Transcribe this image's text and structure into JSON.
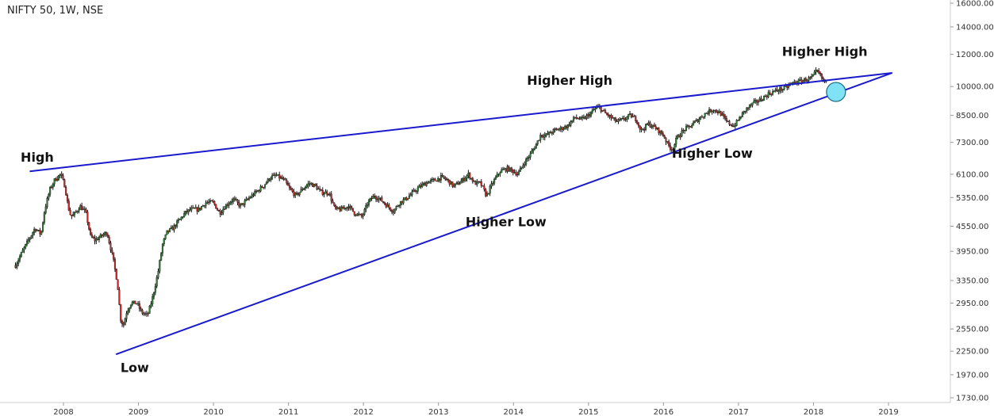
{
  "chart_data": {
    "type": "candlestick",
    "title": "NIFTY 50, 1W, NSE",
    "y_scale": "log",
    "yticks": [
      1730,
      1970,
      2250,
      2550,
      2950,
      3350,
      3950,
      4550,
      5350,
      6100,
      7300,
      8500,
      10000,
      12000,
      14000,
      16000
    ],
    "xticks": [
      "2008",
      "2009",
      "2010",
      "2011",
      "2012",
      "2013",
      "2014",
      "2015",
      "2016",
      "2017",
      "2018",
      "2019"
    ],
    "x_range": [
      2007.35,
      2019.3
    ],
    "ylim": [
      1690,
      16800
    ],
    "grid": false,
    "price_path": [
      [
        2007.36,
        3650
      ],
      [
        2007.5,
        4100
      ],
      [
        2007.62,
        4500
      ],
      [
        2007.7,
        4350
      ],
      [
        2007.75,
        5000
      ],
      [
        2007.82,
        5600
      ],
      [
        2007.88,
        5900
      ],
      [
        2007.96,
        6100
      ],
      [
        2008.02,
        5700
      ],
      [
        2008.06,
        5100
      ],
      [
        2008.1,
        4800
      ],
      [
        2008.16,
        4900
      ],
      [
        2008.22,
        5100
      ],
      [
        2008.3,
        4900
      ],
      [
        2008.36,
        4300
      ],
      [
        2008.42,
        4200
      ],
      [
        2008.5,
        4300
      ],
      [
        2008.58,
        4400
      ],
      [
        2008.66,
        3800
      ],
      [
        2008.72,
        3300
      ],
      [
        2008.76,
        2700
      ],
      [
        2008.8,
        2600
      ],
      [
        2008.84,
        2800
      ],
      [
        2008.9,
        2950
      ],
      [
        2008.98,
        2950
      ],
      [
        2009.04,
        2800
      ],
      [
        2009.12,
        2750
      ],
      [
        2009.18,
        3000
      ],
      [
        2009.26,
        3500
      ],
      [
        2009.32,
        4100
      ],
      [
        2009.38,
        4400
      ],
      [
        2009.46,
        4500
      ],
      [
        2009.54,
        4700
      ],
      [
        2009.62,
        4900
      ],
      [
        2009.7,
        5000
      ],
      [
        2009.8,
        5000
      ],
      [
        2009.9,
        5200
      ],
      [
        2010.0,
        5200
      ],
      [
        2010.08,
        4900
      ],
      [
        2010.16,
        5100
      ],
      [
        2010.26,
        5300
      ],
      [
        2010.36,
        5100
      ],
      [
        2010.46,
        5300
      ],
      [
        2010.56,
        5500
      ],
      [
        2010.66,
        5700
      ],
      [
        2010.76,
        6000
      ],
      [
        2010.84,
        6050
      ],
      [
        2010.94,
        5900
      ],
      [
        2011.02,
        5600
      ],
      [
        2011.1,
        5400
      ],
      [
        2011.18,
        5600
      ],
      [
        2011.28,
        5800
      ],
      [
        2011.36,
        5700
      ],
      [
        2011.44,
        5500
      ],
      [
        2011.54,
        5500
      ],
      [
        2011.62,
        5000
      ],
      [
        2011.7,
        5000
      ],
      [
        2011.8,
        5100
      ],
      [
        2011.88,
        4900
      ],
      [
        2011.98,
        4800
      ],
      [
        2012.06,
        5200
      ],
      [
        2012.14,
        5400
      ],
      [
        2012.22,
        5300
      ],
      [
        2012.32,
        5100
      ],
      [
        2012.4,
        4950
      ],
      [
        2012.48,
        5200
      ],
      [
        2012.56,
        5300
      ],
      [
        2012.66,
        5500
      ],
      [
        2012.76,
        5700
      ],
      [
        2012.86,
        5850
      ],
      [
        2012.96,
        5900
      ],
      [
        2013.04,
        6000
      ],
      [
        2013.12,
        5900
      ],
      [
        2013.2,
        5700
      ],
      [
        2013.3,
        5850
      ],
      [
        2013.4,
        6100
      ],
      [
        2013.48,
        5800
      ],
      [
        2013.56,
        5800
      ],
      [
        2013.64,
        5400
      ],
      [
        2013.72,
        5800
      ],
      [
        2013.82,
        6200
      ],
      [
        2013.92,
        6300
      ],
      [
        2014.0,
        6200
      ],
      [
        2014.06,
        6100
      ],
      [
        2014.14,
        6500
      ],
      [
        2014.22,
        6800
      ],
      [
        2014.3,
        7200
      ],
      [
        2014.36,
        7600
      ],
      [
        2014.44,
        7600
      ],
      [
        2014.54,
        7800
      ],
      [
        2014.64,
        7900
      ],
      [
        2014.72,
        8000
      ],
      [
        2014.82,
        8400
      ],
      [
        2014.92,
        8300
      ],
      [
        2015.0,
        8500
      ],
      [
        2015.08,
        8800
      ],
      [
        2015.14,
        8900
      ],
      [
        2015.22,
        8600
      ],
      [
        2015.3,
        8400
      ],
      [
        2015.38,
        8200
      ],
      [
        2015.46,
        8300
      ],
      [
        2015.56,
        8500
      ],
      [
        2015.64,
        8300
      ],
      [
        2015.7,
        7800
      ],
      [
        2015.8,
        8100
      ],
      [
        2015.9,
        7900
      ],
      [
        2016.0,
        7600
      ],
      [
        2016.06,
        7200
      ],
      [
        2016.12,
        7000
      ],
      [
        2016.18,
        7500
      ],
      [
        2016.28,
        7850
      ],
      [
        2016.36,
        8000
      ],
      [
        2016.46,
        8300
      ],
      [
        2016.56,
        8600
      ],
      [
        2016.66,
        8800
      ],
      [
        2016.76,
        8600
      ],
      [
        2016.84,
        8200
      ],
      [
        2016.94,
        8000
      ],
      [
        2017.02,
        8400
      ],
      [
        2017.1,
        8800
      ],
      [
        2017.2,
        9100
      ],
      [
        2017.3,
        9300
      ],
      [
        2017.4,
        9600
      ],
      [
        2017.52,
        9800
      ],
      [
        2017.62,
        9900
      ],
      [
        2017.72,
        10200
      ],
      [
        2017.82,
        10300
      ],
      [
        2017.9,
        10400
      ],
      [
        2017.98,
        10500
      ],
      [
        2018.04,
        10900
      ],
      [
        2018.08,
        10700
      ],
      [
        2018.14,
        10300
      ],
      [
        2018.18,
        10200
      ]
    ],
    "trendlines": [
      {
        "from": [
          2007.55,
          6200
        ],
        "to": [
          2019.05,
          10800
        ]
      },
      {
        "from": [
          2008.7,
          2210
        ],
        "to": [
          2019.05,
          10800
        ]
      }
    ],
    "highlight": {
      "x": 2018.3,
      "y": 9700
    },
    "annotations": [
      {
        "text": "High",
        "x": 2007.65,
        "y": 6550
      },
      {
        "text": "Low",
        "x": 2008.95,
        "y": 2000
      },
      {
        "text": "Higher High",
        "x": 2014.75,
        "y": 10100
      },
      {
        "text": "Higher Low",
        "x": 2013.9,
        "y": 4550
      },
      {
        "text": "Higher Low",
        "x": 2016.65,
        "y": 6700
      },
      {
        "text": "Higher High",
        "x": 2018.15,
        "y": 11900
      }
    ],
    "colors": {
      "up": "#2e7d32",
      "down": "#c62828",
      "body": "#111111",
      "trendline": "#1a1acd",
      "highlight": "#7fe3f5"
    }
  }
}
